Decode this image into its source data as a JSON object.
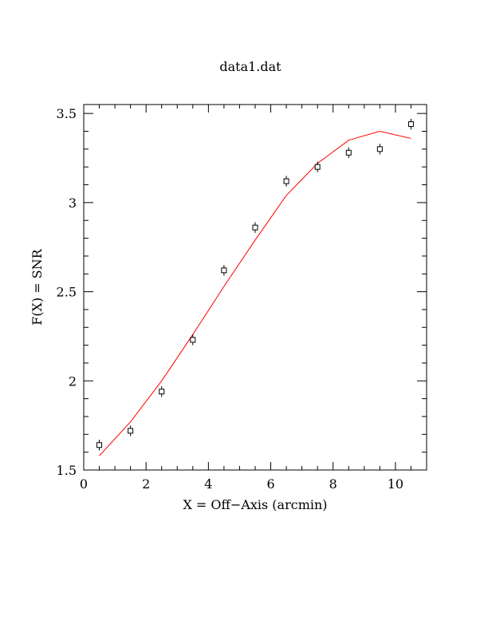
{
  "chart_data": {
    "type": "scatter",
    "title": "data1.dat",
    "xlabel": "X = Off−Axis (arcmin)",
    "ylabel": "F(X) = SNR",
    "xlim": [
      0,
      11
    ],
    "ylim": [
      1.5,
      3.55
    ],
    "xticks": [
      0,
      2,
      4,
      6,
      8,
      10
    ],
    "xtick_labels": [
      "0",
      "2",
      "4",
      "6",
      "8",
      "10"
    ],
    "yticks": [
      1.5,
      2,
      2.5,
      3,
      3.5
    ],
    "ytick_labels": [
      "1.5",
      "2",
      "2.5",
      "3",
      "3.5"
    ],
    "grid": false,
    "points": {
      "marker": "open-square",
      "color": "#000000",
      "x": [
        0.5,
        1.5,
        2.5,
        3.5,
        4.5,
        5.5,
        6.5,
        7.5,
        8.5,
        9.5,
        10.5
      ],
      "y": [
        1.64,
        1.72,
        1.94,
        2.23,
        2.62,
        2.86,
        3.12,
        3.2,
        3.28,
        3.3,
        3.44
      ],
      "err": [
        0.03,
        0.03,
        0.03,
        0.03,
        0.03,
        0.03,
        0.03,
        0.03,
        0.03,
        0.03,
        0.03
      ]
    },
    "model": {
      "color": "#ff0000",
      "x": [
        0.5,
        1.5,
        2.5,
        3.5,
        4.5,
        5.5,
        6.5,
        7.5,
        8.5,
        9.5,
        10.5
      ],
      "y": [
        1.58,
        1.77,
        2.0,
        2.26,
        2.53,
        2.79,
        3.04,
        3.22,
        3.35,
        3.4,
        3.36
      ]
    }
  }
}
